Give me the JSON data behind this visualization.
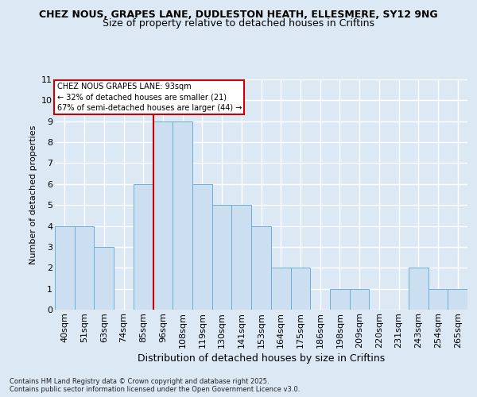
{
  "title1": "CHEZ NOUS, GRAPES LANE, DUDLESTON HEATH, ELLESMERE, SY12 9NG",
  "title2": "Size of property relative to detached houses in Criftins",
  "xlabel": "Distribution of detached houses by size in Criftins",
  "ylabel": "Number of detached properties",
  "bar_labels": [
    "40sqm",
    "51sqm",
    "63sqm",
    "74sqm",
    "85sqm",
    "96sqm",
    "108sqm",
    "119sqm",
    "130sqm",
    "141sqm",
    "153sqm",
    "164sqm",
    "175sqm",
    "186sqm",
    "198sqm",
    "209sqm",
    "220sqm",
    "231sqm",
    "243sqm",
    "254sqm",
    "265sqm"
  ],
  "bar_values": [
    4,
    4,
    3,
    0,
    6,
    9,
    9,
    6,
    5,
    5,
    4,
    2,
    2,
    0,
    1,
    1,
    0,
    0,
    2,
    1,
    1
  ],
  "bar_color": "#ccdff0",
  "bar_edge_color": "#6aaed6",
  "ref_line_value": 4.5,
  "ref_line_color": "#cc0000",
  "annotation_text": "CHEZ NOUS GRAPES LANE: 93sqm\n← 32% of detached houses are smaller (21)\n67% of semi-detached houses are larger (44) →",
  "annotation_box_facecolor": "#ffffff",
  "annotation_box_edgecolor": "#cc0000",
  "ylim": [
    0,
    11
  ],
  "yticks": [
    0,
    1,
    2,
    3,
    4,
    5,
    6,
    7,
    8,
    9,
    10,
    11
  ],
  "footer": "Contains HM Land Registry data © Crown copyright and database right 2025.\nContains public sector information licensed under the Open Government Licence v3.0.",
  "bg_color": "#dce9f5",
  "plot_bg_color": "#dce9f5",
  "grid_color": "#ffffff",
  "title_fontsize": 9,
  "subtitle_fontsize": 9,
  "ylabel_fontsize": 8,
  "xlabel_fontsize": 9,
  "tick_fontsize": 8,
  "annot_fontsize": 7,
  "footer_fontsize": 6
}
